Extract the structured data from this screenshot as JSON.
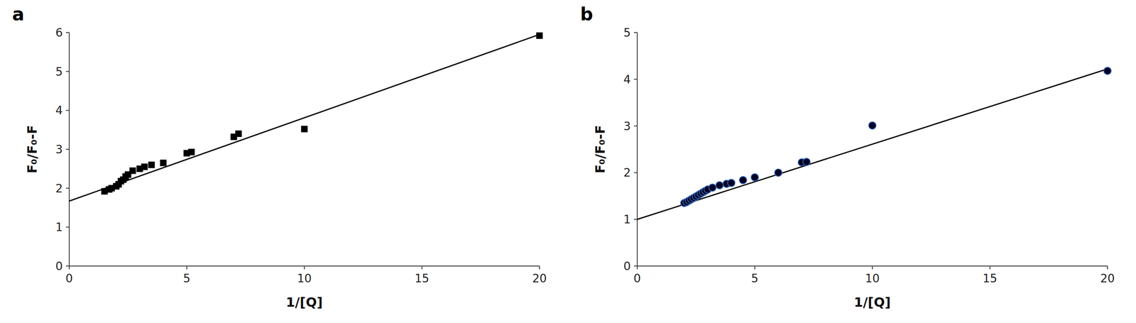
{
  "chart_data": [
    {
      "type": "scatter",
      "title": "a",
      "xlabel": "1/[Q]",
      "ylabel": "F₀/F₀-F",
      "xlim": [
        0,
        20
      ],
      "ylim": [
        0,
        6
      ],
      "xticks": [
        0,
        5,
        10,
        15,
        20
      ],
      "yticks": [
        0,
        1,
        2,
        3,
        4,
        5,
        6
      ],
      "grid": false,
      "series": [
        {
          "type": "line",
          "color": "#000000",
          "x": [
            0.0,
            20.0
          ],
          "values": [
            1.67,
            5.95
          ]
        },
        {
          "type": "scatter",
          "marker": "square",
          "color": "#000000",
          "x": [
            1.5,
            1.7,
            1.8,
            2.0,
            2.1,
            2.2,
            2.3,
            2.4,
            2.5,
            2.7,
            3.0,
            3.2,
            3.5,
            4.0,
            5.0,
            5.2,
            7.0,
            7.2,
            10.0,
            20.0
          ],
          "values": [
            1.92,
            1.97,
            2.0,
            2.05,
            2.1,
            2.18,
            2.22,
            2.3,
            2.35,
            2.45,
            2.5,
            2.55,
            2.6,
            2.65,
            2.9,
            2.93,
            3.32,
            3.4,
            3.52,
            5.92
          ]
        }
      ]
    },
    {
      "type": "scatter",
      "title": "b",
      "xlabel": "1/[Q]",
      "ylabel": "F₀/F₀-F",
      "xlim": [
        0,
        20
      ],
      "ylim": [
        0,
        5
      ],
      "xticks": [
        0,
        5,
        10,
        15,
        20
      ],
      "yticks": [
        0,
        1,
        2,
        3,
        4,
        5
      ],
      "grid": false,
      "series": [
        {
          "type": "line",
          "color": "#000000",
          "x": [
            0.0,
            20.0
          ],
          "values": [
            1.0,
            4.22
          ]
        },
        {
          "type": "scatter",
          "marker": "circle",
          "color": "#000022",
          "x": [
            2.0,
            2.1,
            2.2,
            2.3,
            2.4,
            2.5,
            2.6,
            2.7,
            2.8,
            2.9,
            3.0,
            3.2,
            3.5,
            3.8,
            4.0,
            4.5,
            5.0,
            6.0,
            7.0,
            7.2,
            10.0,
            20.0
          ],
          "values": [
            1.35,
            1.37,
            1.4,
            1.43,
            1.46,
            1.49,
            1.52,
            1.55,
            1.58,
            1.61,
            1.64,
            1.68,
            1.73,
            1.76,
            1.78,
            1.84,
            1.9,
            2.0,
            2.22,
            2.23,
            3.01,
            4.18
          ]
        }
      ]
    }
  ]
}
